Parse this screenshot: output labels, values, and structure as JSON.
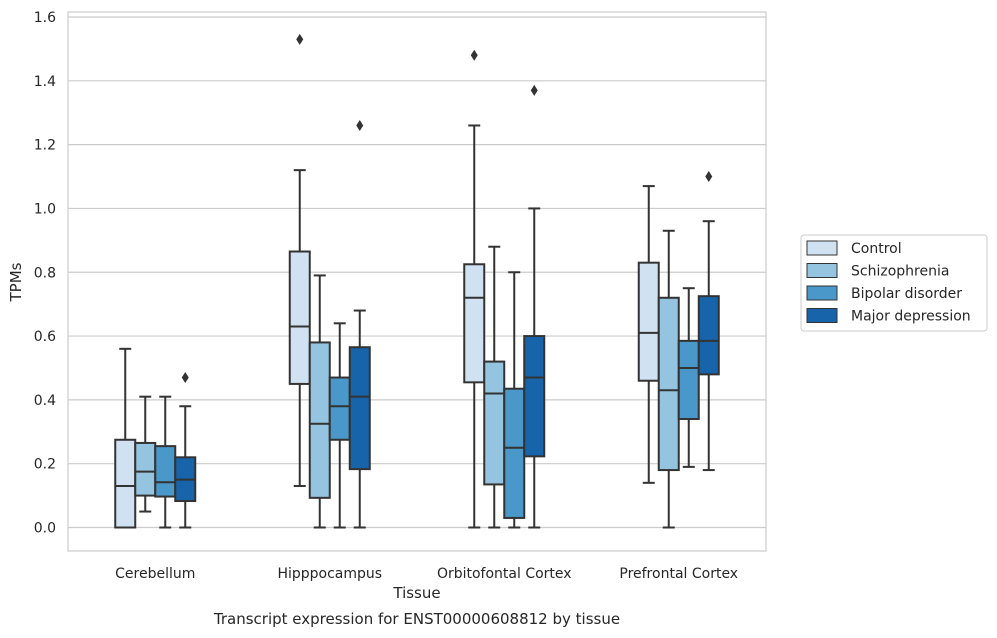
{
  "chart_data": {
    "type": "boxplot",
    "title": "",
    "caption": "Transcript expression for ENST00000608812 by tissue",
    "xlabel": "Tissue",
    "ylabel": "TPMs",
    "ylim": [
      -0.07,
      1.61
    ],
    "yticks": [
      0.0,
      0.2,
      0.4,
      0.6,
      0.8,
      1.0,
      1.2,
      1.4,
      1.6
    ],
    "ytick_labels": [
      "0.0",
      "0.2",
      "0.4",
      "0.6",
      "0.8",
      "1.0",
      "1.2",
      "1.4",
      "1.6"
    ],
    "grid": "horizontal",
    "legend_position": "right",
    "categories": [
      "Cerebellum",
      "Hipppocampus",
      "Orbitofontal Cortex",
      "Prefrontal Cortex"
    ],
    "series": [
      {
        "name": "Control",
        "color": "#d0e1f2",
        "boxes": [
          {
            "whisker_low": 0.0,
            "q1": 0.0,
            "median": 0.13,
            "q3": 0.275,
            "whisker_high": 0.56,
            "outliers": []
          },
          {
            "whisker_low": 0.13,
            "q1": 0.45,
            "median": 0.63,
            "q3": 0.865,
            "whisker_high": 1.12,
            "outliers": [
              1.53
            ]
          },
          {
            "whisker_low": 0.0,
            "q1": 0.455,
            "median": 0.72,
            "q3": 0.825,
            "whisker_high": 1.26,
            "outliers": [
              1.48
            ]
          },
          {
            "whisker_low": 0.14,
            "q1": 0.46,
            "median": 0.61,
            "q3": 0.83,
            "whisker_high": 1.07,
            "outliers": []
          }
        ]
      },
      {
        "name": "Schizophrenia",
        "color": "#94c4df",
        "boxes": [
          {
            "whisker_low": 0.05,
            "q1": 0.1,
            "median": 0.175,
            "q3": 0.265,
            "whisker_high": 0.41,
            "outliers": []
          },
          {
            "whisker_low": 0.0,
            "q1": 0.093,
            "median": 0.325,
            "q3": 0.58,
            "whisker_high": 0.79,
            "outliers": []
          },
          {
            "whisker_low": 0.0,
            "q1": 0.135,
            "median": 0.42,
            "q3": 0.52,
            "whisker_high": 0.88,
            "outliers": []
          },
          {
            "whisker_low": 0.0,
            "q1": 0.18,
            "median": 0.43,
            "q3": 0.72,
            "whisker_high": 0.93,
            "outliers": []
          }
        ]
      },
      {
        "name": "Bipolar disorder",
        "color": "#4a98c9",
        "boxes": [
          {
            "whisker_low": 0.0,
            "q1": 0.097,
            "median": 0.142,
            "q3": 0.255,
            "whisker_high": 0.41,
            "outliers": []
          },
          {
            "whisker_low": 0.0,
            "q1": 0.275,
            "median": 0.38,
            "q3": 0.47,
            "whisker_high": 0.64,
            "outliers": []
          },
          {
            "whisker_low": 0.0,
            "q1": 0.03,
            "median": 0.25,
            "q3": 0.435,
            "whisker_high": 0.8,
            "outliers": []
          },
          {
            "whisker_low": 0.19,
            "q1": 0.34,
            "median": 0.5,
            "q3": 0.585,
            "whisker_high": 0.75,
            "outliers": []
          }
        ]
      },
      {
        "name": "Major depression",
        "color": "#1764ab",
        "boxes": [
          {
            "whisker_low": 0.0,
            "q1": 0.083,
            "median": 0.15,
            "q3": 0.22,
            "whisker_high": 0.38,
            "outliers": [
              0.47
            ]
          },
          {
            "whisker_low": 0.0,
            "q1": 0.183,
            "median": 0.41,
            "q3": 0.565,
            "whisker_high": 0.68,
            "outliers": [
              1.26
            ]
          },
          {
            "whisker_low": 0.0,
            "q1": 0.223,
            "median": 0.47,
            "q3": 0.6,
            "whisker_high": 1.0,
            "outliers": [
              1.37
            ]
          },
          {
            "whisker_low": 0.18,
            "q1": 0.48,
            "median": 0.585,
            "q3": 0.725,
            "whisker_high": 0.96,
            "outliers": [
              1.1
            ]
          }
        ]
      }
    ]
  }
}
